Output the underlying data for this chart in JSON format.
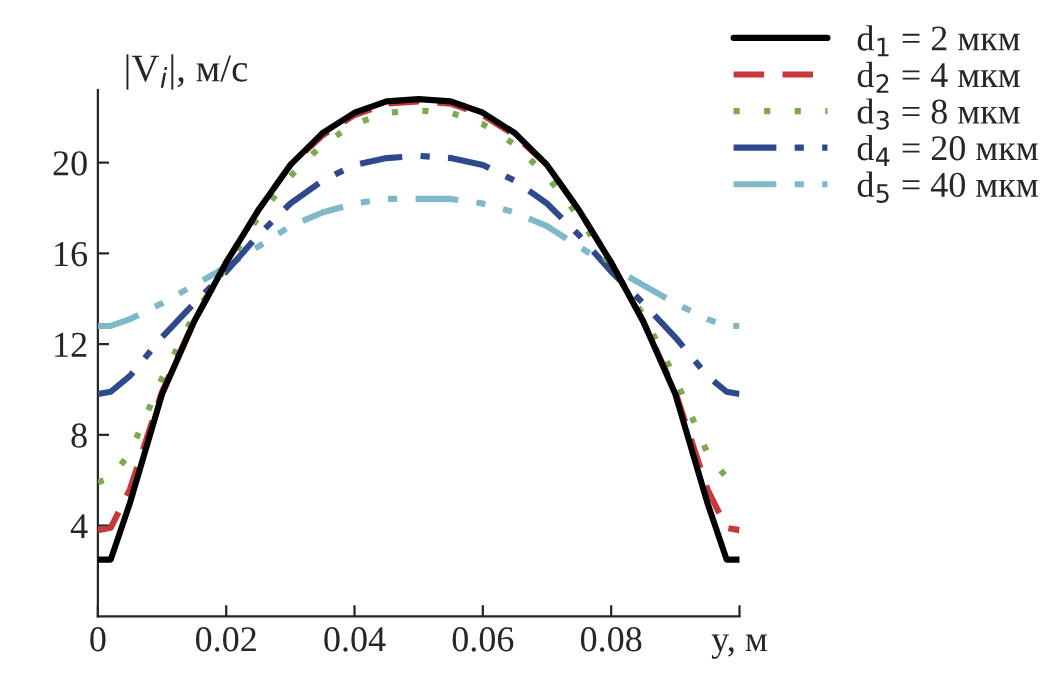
{
  "chart_data": {
    "type": "line",
    "ylabel": "|V$_{i}$|, м/с",
    "x": [
      0,
      0.002,
      0.005,
      0.01,
      0.015,
      0.02,
      0.025,
      0.03,
      0.035,
      0.04,
      0.045,
      0.05,
      0.055,
      0.06,
      0.065,
      0.07,
      0.075,
      0.08,
      0.085,
      0.09,
      0.095,
      0.098,
      0.1
    ],
    "series": [
      {
        "name": "d$_{1}$ = 2 мкм",
        "color": "#000000",
        "line_style": "solid",
        "values": [
          2.5,
          2.5,
          5.0,
          9.8,
          13.0,
          15.6,
          17.9,
          19.9,
          21.3,
          22.2,
          22.7,
          22.8,
          22.7,
          22.2,
          21.3,
          19.9,
          17.9,
          15.6,
          13.0,
          9.8,
          5.0,
          2.5,
          2.5
        ]
      },
      {
        "name": "d$_{2}$ = 4 мкм",
        "color": "#c8383a",
        "line_style": "dashed",
        "values": [
          3.8,
          3.9,
          5.6,
          9.9,
          13.0,
          15.6,
          17.9,
          19.9,
          21.2,
          22.1,
          22.6,
          22.7,
          22.6,
          22.1,
          21.2,
          19.9,
          17.9,
          15.6,
          13.0,
          9.9,
          5.6,
          3.9,
          3.8
        ]
      },
      {
        "name": "d$_{3}$ = 8 мкм",
        "color": "#7cab4f",
        "line_style": "dotted",
        "values": [
          5.9,
          6.1,
          7.2,
          10.5,
          13.3,
          15.4,
          17.6,
          19.4,
          20.8,
          21.7,
          22.2,
          22.3,
          22.2,
          21.7,
          20.8,
          19.4,
          17.6,
          15.4,
          13.3,
          10.5,
          7.2,
          6.1,
          5.9
        ]
      },
      {
        "name": "d$_{4}$ = 20 мкм",
        "color": "#2e4a8c",
        "line_style": "dashdot",
        "values": [
          9.8,
          9.9,
          10.6,
          12.3,
          13.8,
          15.2,
          16.8,
          18.2,
          19.2,
          19.9,
          20.2,
          20.3,
          20.2,
          19.9,
          19.2,
          18.2,
          16.8,
          15.2,
          13.8,
          12.3,
          10.6,
          9.9,
          9.8
        ]
      },
      {
        "name": "d$_{5}$ = 40 мкм",
        "color": "#7fb8c8",
        "line_style": "dashdotdot",
        "values": [
          12.8,
          12.8,
          13.1,
          13.8,
          14.6,
          15.4,
          16.3,
          17.2,
          17.8,
          18.2,
          18.4,
          18.4,
          18.4,
          18.2,
          17.8,
          17.2,
          16.3,
          15.4,
          14.6,
          13.8,
          13.1,
          12.8,
          12.8
        ]
      }
    ],
    "xlim": [
      0,
      0.1
    ],
    "ylim": [
      0,
      23.2
    ],
    "xticks": [
      0,
      0.02,
      0.04,
      0.06,
      0.08,
      {
        "value": 0.1,
        "label": "y, м"
      }
    ],
    "yticks": [
      4,
      8,
      12,
      16,
      20
    ],
    "grid": false,
    "legend": "top right",
    "marker": "none"
  }
}
